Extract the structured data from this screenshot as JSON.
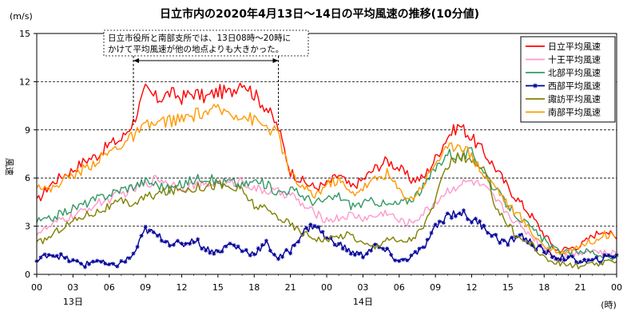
{
  "chart_data": {
    "type": "line",
    "title": "日立市内の2020年4月13日～14日の平均風速の推移(10分値)",
    "ylabel": "風速",
    "yunit": "(m/s)",
    "xunit": "(時)",
    "ylim": [
      0,
      15
    ],
    "yticks": [
      0,
      3,
      6,
      9,
      12,
      15
    ],
    "xticks": [
      "00",
      "03",
      "06",
      "09",
      "12",
      "15",
      "18",
      "21",
      "00",
      "03",
      "06",
      "09",
      "12",
      "15",
      "18",
      "21",
      "00"
    ],
    "day_labels": [
      {
        "label": "13日",
        "hour": 3
      },
      {
        "label": "14日",
        "hour": 27
      }
    ],
    "grid": true,
    "legend_position": "top-right",
    "annotation": {
      "lines": [
        "日立市役所と南部支所では、13日08時～20時に",
        "かけて平均風速が他の地点よりも大きかった。"
      ],
      "from_hour": 8,
      "to_hour": 20
    },
    "series": [
      {
        "name": "日立平均風速",
        "color": "#ff0000",
        "marker": "none",
        "points": [
          [
            0,
            4.5
          ],
          [
            1,
            5.5
          ],
          [
            2,
            6.1
          ],
          [
            3,
            6.5
          ],
          [
            4,
            7.1
          ],
          [
            5,
            7.4
          ],
          [
            6,
            8.1
          ],
          [
            7,
            8.4
          ],
          [
            8,
            9.5
          ],
          [
            9,
            11.5
          ],
          [
            10,
            10.9
          ],
          [
            11,
            11.3
          ],
          [
            12,
            11.0
          ],
          [
            13,
            11.3
          ],
          [
            14,
            11.0
          ],
          [
            15,
            11.4
          ],
          [
            16,
            11.3
          ],
          [
            17,
            12.1
          ],
          [
            18,
            11.2
          ],
          [
            19,
            10.4
          ],
          [
            20,
            9.1
          ],
          [
            21,
            6.4
          ],
          [
            22,
            5.8
          ],
          [
            23,
            5.4
          ],
          [
            24,
            5.6
          ],
          [
            25,
            6.2
          ],
          [
            26,
            5.4
          ],
          [
            27,
            5.9
          ],
          [
            28,
            6.6
          ],
          [
            29,
            7.1
          ],
          [
            30,
            6.6
          ],
          [
            31,
            5.9
          ],
          [
            32,
            6.0
          ],
          [
            33,
            7.2
          ],
          [
            34,
            8.6
          ],
          [
            35,
            9.3
          ],
          [
            36,
            8.5
          ],
          [
            37,
            7.6
          ],
          [
            38,
            6.6
          ],
          [
            39,
            5.4
          ],
          [
            40,
            4.5
          ],
          [
            41,
            3.6
          ],
          [
            42,
            2.5
          ],
          [
            43,
            1.5
          ],
          [
            44,
            1.6
          ],
          [
            45,
            1.8
          ],
          [
            46,
            2.4
          ],
          [
            47,
            2.8
          ],
          [
            48,
            2.2
          ]
        ]
      },
      {
        "name": "十王平均風速",
        "color": "#ff99cc",
        "marker": "none",
        "points": [
          [
            0,
            2.6
          ],
          [
            1,
            2.9
          ],
          [
            2,
            3.4
          ],
          [
            3,
            3.6
          ],
          [
            4,
            4.0
          ],
          [
            5,
            4.4
          ],
          [
            6,
            4.7
          ],
          [
            7,
            5.0
          ],
          [
            8,
            5.3
          ],
          [
            9,
            5.6
          ],
          [
            10,
            6.0
          ],
          [
            11,
            5.7
          ],
          [
            12,
            5.4
          ],
          [
            13,
            5.6
          ],
          [
            14,
            5.5
          ],
          [
            15,
            5.8
          ],
          [
            16,
            5.6
          ],
          [
            17,
            5.9
          ],
          [
            18,
            5.3
          ],
          [
            19,
            5.2
          ],
          [
            20,
            5.1
          ],
          [
            21,
            5.0
          ],
          [
            22,
            4.3
          ],
          [
            23,
            3.8
          ],
          [
            24,
            3.4
          ],
          [
            25,
            3.5
          ],
          [
            26,
            3.7
          ],
          [
            27,
            3.5
          ],
          [
            28,
            3.6
          ],
          [
            29,
            3.9
          ],
          [
            30,
            3.3
          ],
          [
            31,
            3.2
          ],
          [
            32,
            3.8
          ],
          [
            33,
            4.5
          ],
          [
            34,
            5.2
          ],
          [
            35,
            5.6
          ],
          [
            36,
            5.8
          ],
          [
            37,
            5.4
          ],
          [
            38,
            4.6
          ],
          [
            39,
            3.8
          ],
          [
            40,
            3.0
          ],
          [
            41,
            2.4
          ],
          [
            42,
            1.6
          ],
          [
            43,
            1.0
          ],
          [
            44,
            1.2
          ],
          [
            45,
            1.4
          ],
          [
            46,
            1.5
          ],
          [
            47,
            1.3
          ],
          [
            48,
            1.3
          ]
        ]
      },
      {
        "name": "北部平均風速",
        "color": "#339966",
        "marker": "none",
        "points": [
          [
            0,
            3.3
          ],
          [
            1,
            3.4
          ],
          [
            2,
            3.8
          ],
          [
            3,
            4.1
          ],
          [
            4,
            4.4
          ],
          [
            5,
            4.7
          ],
          [
            6,
            5.0
          ],
          [
            7,
            5.3
          ],
          [
            8,
            5.5
          ],
          [
            9,
            5.8
          ],
          [
            10,
            5.6
          ],
          [
            11,
            5.3
          ],
          [
            12,
            5.6
          ],
          [
            13,
            5.9
          ],
          [
            14,
            6.1
          ],
          [
            15,
            5.7
          ],
          [
            16,
            5.8
          ],
          [
            17,
            5.5
          ],
          [
            18,
            5.8
          ],
          [
            19,
            5.6
          ],
          [
            20,
            5.1
          ],
          [
            21,
            5.3
          ],
          [
            22,
            4.9
          ],
          [
            23,
            4.5
          ],
          [
            24,
            4.6
          ],
          [
            25,
            4.9
          ],
          [
            26,
            4.3
          ],
          [
            27,
            4.4
          ],
          [
            28,
            4.6
          ],
          [
            29,
            4.3
          ],
          [
            30,
            4.4
          ],
          [
            31,
            4.7
          ],
          [
            32,
            5.4
          ],
          [
            33,
            6.6
          ],
          [
            34,
            7.6
          ],
          [
            35,
            7.3
          ],
          [
            36,
            7.6
          ],
          [
            37,
            6.5
          ],
          [
            38,
            5.2
          ],
          [
            39,
            4.3
          ],
          [
            40,
            3.5
          ],
          [
            41,
            2.8
          ],
          [
            42,
            2.1
          ],
          [
            43,
            1.5
          ],
          [
            44,
            1.3
          ],
          [
            45,
            1.5
          ],
          [
            46,
            1.4
          ],
          [
            47,
            1.1
          ],
          [
            48,
            1.0
          ]
        ]
      },
      {
        "name": "西部平均風速",
        "color": "#000099",
        "marker": "star",
        "points": [
          [
            0,
            0.8
          ],
          [
            1,
            1.3
          ],
          [
            2,
            1.1
          ],
          [
            3,
            0.8
          ],
          [
            4,
            0.6
          ],
          [
            5,
            0.9
          ],
          [
            6,
            0.5
          ],
          [
            7,
            0.7
          ],
          [
            8,
            1.2
          ],
          [
            9,
            2.8
          ],
          [
            10,
            2.4
          ],
          [
            11,
            2.0
          ],
          [
            12,
            1.8
          ],
          [
            13,
            2.2
          ],
          [
            14,
            1.6
          ],
          [
            15,
            1.4
          ],
          [
            16,
            1.9
          ],
          [
            17,
            1.5
          ],
          [
            18,
            1.3
          ],
          [
            19,
            1.9
          ],
          [
            20,
            1.0
          ],
          [
            21,
            1.5
          ],
          [
            22,
            2.6
          ],
          [
            23,
            3.1
          ],
          [
            24,
            2.2
          ],
          [
            25,
            1.9
          ],
          [
            26,
            1.4
          ],
          [
            27,
            1.2
          ],
          [
            28,
            1.8
          ],
          [
            29,
            1.4
          ],
          [
            30,
            0.8
          ],
          [
            31,
            1.1
          ],
          [
            32,
            1.6
          ],
          [
            33,
            2.9
          ],
          [
            34,
            3.7
          ],
          [
            35,
            3.9
          ],
          [
            36,
            3.4
          ],
          [
            37,
            3.0
          ],
          [
            38,
            2.3
          ],
          [
            39,
            1.9
          ],
          [
            40,
            2.5
          ],
          [
            41,
            1.9
          ],
          [
            42,
            1.4
          ],
          [
            43,
            1.1
          ],
          [
            44,
            1.0
          ],
          [
            45,
            0.8
          ],
          [
            46,
            0.8
          ],
          [
            47,
            1.0
          ],
          [
            48,
            1.2
          ]
        ]
      },
      {
        "name": "諏訪平均風速",
        "color": "#808000",
        "marker": "none",
        "points": [
          [
            0,
            1.9
          ],
          [
            1,
            2.3
          ],
          [
            2,
            2.9
          ],
          [
            3,
            3.3
          ],
          [
            4,
            3.7
          ],
          [
            5,
            3.9
          ],
          [
            6,
            4.2
          ],
          [
            7,
            4.5
          ],
          [
            8,
            4.4
          ],
          [
            9,
            4.8
          ],
          [
            10,
            5.0
          ],
          [
            11,
            5.2
          ],
          [
            12,
            5.3
          ],
          [
            13,
            5.4
          ],
          [
            14,
            5.5
          ],
          [
            15,
            5.6
          ],
          [
            16,
            5.4
          ],
          [
            17,
            5.2
          ],
          [
            18,
            4.3
          ],
          [
            19,
            4.0
          ],
          [
            20,
            3.6
          ],
          [
            21,
            3.1
          ],
          [
            22,
            2.6
          ],
          [
            23,
            2.3
          ],
          [
            24,
            2.1
          ],
          [
            25,
            2.4
          ],
          [
            26,
            2.5
          ],
          [
            27,
            1.9
          ],
          [
            28,
            1.7
          ],
          [
            29,
            2.3
          ],
          [
            30,
            2.0
          ],
          [
            31,
            2.2
          ],
          [
            32,
            2.9
          ],
          [
            33,
            4.6
          ],
          [
            34,
            6.8
          ],
          [
            35,
            7.4
          ],
          [
            36,
            7.0
          ],
          [
            37,
            6.4
          ],
          [
            38,
            4.3
          ],
          [
            39,
            3.1
          ],
          [
            40,
            2.2
          ],
          [
            41,
            1.9
          ],
          [
            42,
            1.0
          ],
          [
            43,
            0.7
          ],
          [
            44,
            0.6
          ],
          [
            45,
            0.5
          ],
          [
            46,
            0.6
          ],
          [
            47,
            0.7
          ],
          [
            48,
            0.8
          ]
        ]
      },
      {
        "name": "南部平均風速",
        "color": "#ff9900",
        "marker": "none",
        "points": [
          [
            0,
            5.7
          ],
          [
            1,
            5.2
          ],
          [
            2,
            5.8
          ],
          [
            3,
            6.2
          ],
          [
            4,
            6.6
          ],
          [
            5,
            7.1
          ],
          [
            6,
            7.6
          ],
          [
            7,
            8.1
          ],
          [
            8,
            8.6
          ],
          [
            9,
            9.2
          ],
          [
            10,
            9.4
          ],
          [
            11,
            9.6
          ],
          [
            12,
            9.6
          ],
          [
            13,
            9.9
          ],
          [
            14,
            10.1
          ],
          [
            15,
            10.2
          ],
          [
            16,
            10.1
          ],
          [
            17,
            9.9
          ],
          [
            18,
            9.6
          ],
          [
            19,
            9.2
          ],
          [
            20,
            8.7
          ],
          [
            21,
            6.2
          ],
          [
            22,
            5.4
          ],
          [
            23,
            4.9
          ],
          [
            24,
            5.6
          ],
          [
            25,
            5.9
          ],
          [
            26,
            5.0
          ],
          [
            27,
            5.4
          ],
          [
            28,
            5.9
          ],
          [
            29,
            6.3
          ],
          [
            30,
            5.2
          ],
          [
            31,
            4.7
          ],
          [
            32,
            5.6
          ],
          [
            33,
            7.0
          ],
          [
            34,
            7.8
          ],
          [
            35,
            8.2
          ],
          [
            36,
            7.4
          ],
          [
            37,
            6.2
          ],
          [
            38,
            5.5
          ],
          [
            39,
            4.3
          ],
          [
            40,
            3.6
          ],
          [
            41,
            2.6
          ],
          [
            42,
            1.8
          ],
          [
            43,
            1.3
          ],
          [
            44,
            1.5
          ],
          [
            45,
            1.8
          ],
          [
            46,
            2.1
          ],
          [
            47,
            2.5
          ],
          [
            48,
            2.3
          ]
        ]
      }
    ]
  }
}
